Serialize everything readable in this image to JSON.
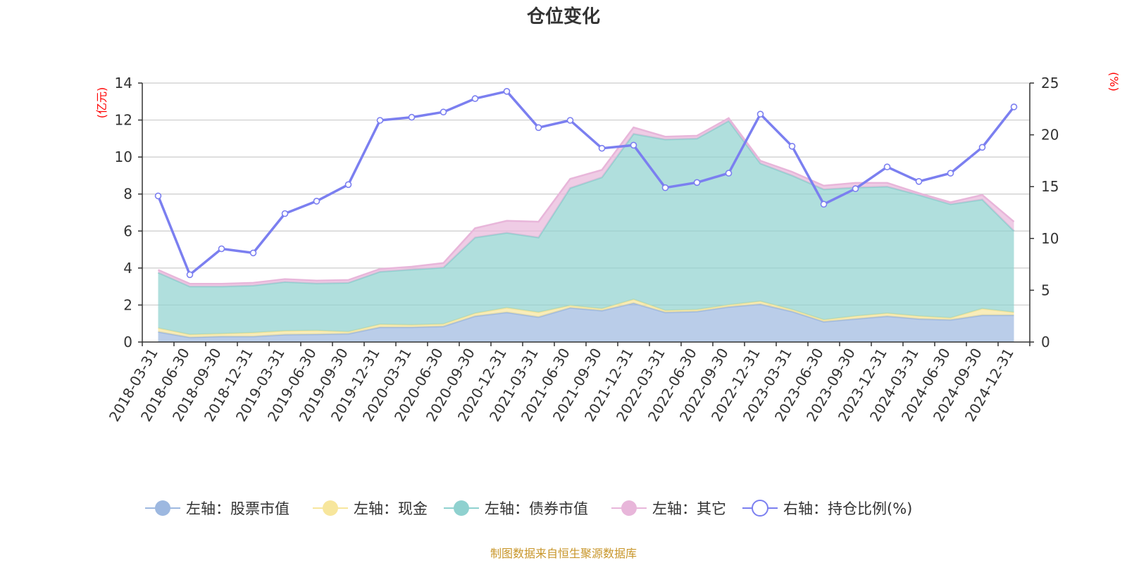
{
  "chart_data": {
    "type": "area",
    "title": "仓位变化",
    "left_axis": {
      "unit": "(亿元)",
      "min": 0,
      "max": 14,
      "ticks": [
        0,
        2,
        4,
        6,
        8,
        10,
        12,
        14
      ]
    },
    "right_axis": {
      "unit": "(%)",
      "min": 0,
      "max": 25,
      "ticks": [
        0,
        5,
        10,
        15,
        20,
        25
      ]
    },
    "grid": true,
    "legend_position": "bottom",
    "categories": [
      "2018-03-31",
      "2018-06-30",
      "2018-09-30",
      "2018-12-31",
      "2019-03-31",
      "2019-06-30",
      "2019-09-30",
      "2019-12-31",
      "2020-03-31",
      "2020-06-30",
      "2020-09-30",
      "2020-12-31",
      "2021-03-31",
      "2021-06-30",
      "2021-09-30",
      "2021-12-31",
      "2022-03-31",
      "2022-06-30",
      "2022-09-30",
      "2022-12-31",
      "2023-03-31",
      "2023-06-30",
      "2023-09-30",
      "2023-12-31",
      "2024-03-31",
      "2024-06-30",
      "2024-09-30",
      "2024-12-31"
    ],
    "series": [
      {
        "name": "左轴：股票市值",
        "axis": "left",
        "stack": true,
        "color": "#9db8e0",
        "values": [
          0.55,
          0.25,
          0.3,
          0.3,
          0.4,
          0.42,
          0.45,
          0.8,
          0.8,
          0.85,
          1.4,
          1.6,
          1.35,
          1.85,
          1.7,
          2.1,
          1.6,
          1.65,
          1.9,
          2.05,
          1.65,
          1.1,
          1.25,
          1.4,
          1.25,
          1.2,
          1.45,
          1.45
        ]
      },
      {
        "name": "左轴：现金",
        "axis": "left",
        "stack": true,
        "color": "#f7e69c",
        "values": [
          0.2,
          0.15,
          0.15,
          0.2,
          0.2,
          0.2,
          0.1,
          0.15,
          0.12,
          0.12,
          0.15,
          0.25,
          0.25,
          0.12,
          0.1,
          0.2,
          0.1,
          0.1,
          0.1,
          0.15,
          0.1,
          0.1,
          0.15,
          0.15,
          0.15,
          0.1,
          0.35,
          0.15
        ]
      },
      {
        "name": "左轴：债券市值",
        "axis": "left",
        "stack": true,
        "color": "#8fd1cf",
        "values": [
          3.0,
          2.6,
          2.55,
          2.55,
          2.65,
          2.55,
          2.65,
          2.85,
          3.0,
          3.05,
          4.1,
          4.05,
          4.05,
          6.35,
          7.1,
          8.95,
          9.25,
          9.25,
          9.95,
          7.45,
          7.25,
          7.05,
          6.95,
          6.85,
          6.55,
          6.15,
          5.9,
          4.4
        ]
      },
      {
        "name": "左轴：其它",
        "axis": "left",
        "stack": true,
        "color": "#e8b6da",
        "values": [
          0.15,
          0.15,
          0.15,
          0.15,
          0.15,
          0.15,
          0.15,
          0.15,
          0.15,
          0.25,
          0.5,
          0.65,
          0.85,
          0.5,
          0.4,
          0.35,
          0.15,
          0.15,
          0.15,
          0.15,
          0.2,
          0.2,
          0.25,
          0.2,
          0.1,
          0.1,
          0.25,
          0.5
        ]
      },
      {
        "name": "右轴：持仓比例(%)",
        "axis": "right",
        "stack": false,
        "color": "#7b7ff0",
        "values": [
          14.1,
          6.5,
          9.0,
          8.6,
          12.4,
          13.6,
          15.2,
          21.4,
          21.7,
          22.2,
          23.5,
          24.2,
          20.7,
          21.4,
          18.7,
          19.0,
          14.9,
          15.4,
          16.3,
          22.0,
          18.9,
          13.3,
          14.8,
          16.9,
          15.5,
          16.3,
          18.8,
          22.7
        ]
      }
    ]
  },
  "footer": {
    "source": "制图数据来自恒生聚源数据库"
  }
}
